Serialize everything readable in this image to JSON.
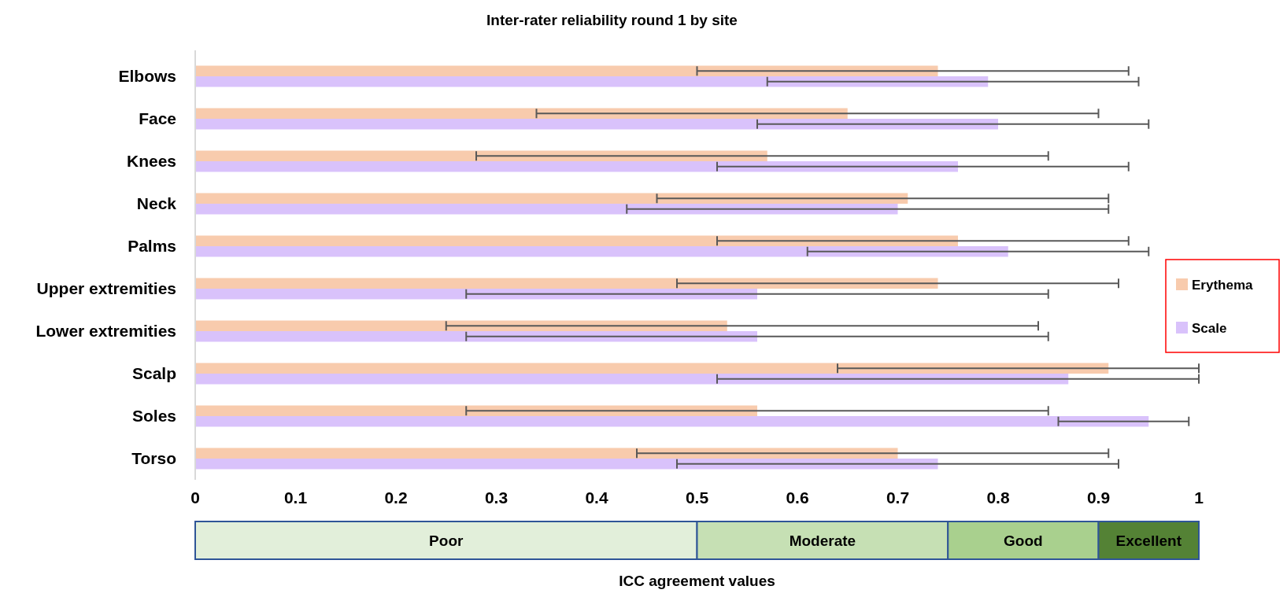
{
  "chart_data": [
    {
      "type": "bar",
      "orientation": "horizontal",
      "title": "Inter-rater reliability round 1 by site",
      "categories": [
        "Elbows",
        "Face",
        "Knees",
        "Neck",
        "Palms",
        "Upper extremities",
        "Lower extremities",
        "Scalp",
        "Soles",
        "Torso"
      ],
      "series": [
        {
          "name": "Erythema",
          "color": "#f8cbad",
          "values": [
            0.74,
            0.65,
            0.57,
            0.71,
            0.76,
            0.74,
            0.53,
            0.91,
            0.56,
            0.7
          ],
          "errors": [
            [
              0.5,
              0.93
            ],
            [
              0.34,
              0.9
            ],
            [
              0.28,
              0.85
            ],
            [
              0.46,
              0.91
            ],
            [
              0.52,
              0.93
            ],
            [
              0.48,
              0.92
            ],
            [
              0.25,
              0.84
            ],
            [
              0.64,
              1.0
            ],
            [
              0.27,
              0.85
            ],
            [
              0.44,
              0.91
            ]
          ]
        },
        {
          "name": "Scale",
          "color": "#d9c2fb",
          "values": [
            0.79,
            0.8,
            0.76,
            0.7,
            0.81,
            0.56,
            0.56,
            0.87,
            0.95,
            0.74
          ],
          "errors": [
            [
              0.57,
              0.94
            ],
            [
              0.56,
              0.95
            ],
            [
              0.52,
              0.93
            ],
            [
              0.43,
              0.91
            ],
            [
              0.61,
              0.95
            ],
            [
              0.27,
              0.85
            ],
            [
              0.27,
              0.85
            ],
            [
              0.52,
              1.0
            ],
            [
              0.86,
              0.99
            ],
            [
              0.48,
              0.92
            ]
          ]
        }
      ],
      "xlim": [
        0,
        1
      ],
      "xticks": [
        0,
        0.1,
        0.2,
        0.3,
        0.4,
        0.5,
        0.6,
        0.7,
        0.8,
        0.9,
        1
      ],
      "legend": "right"
    },
    {
      "type": "bar",
      "orientation": "horizontal",
      "stacked": true,
      "xlabel": "ICC agreement values",
      "categories": [
        null
      ],
      "series": [
        {
          "name": "Poor",
          "color": "#e2efda",
          "values": [
            0.5
          ]
        },
        {
          "name": "Moderate",
          "color": "#c6e0b4",
          "values": [
            0.25
          ]
        },
        {
          "name": "Good",
          "color": "#a9d08e",
          "values": [
            0.15
          ]
        },
        {
          "name": "Excellent",
          "color": "#548235",
          "values": [
            0.1
          ]
        }
      ],
      "xlim": [
        0,
        1
      ],
      "xticks": [
        0,
        0.1,
        0.2,
        0.3,
        0.4,
        0.5,
        0.6,
        0.7,
        0.8,
        0.9,
        1
      ],
      "tick_labels": false
    }
  ]
}
